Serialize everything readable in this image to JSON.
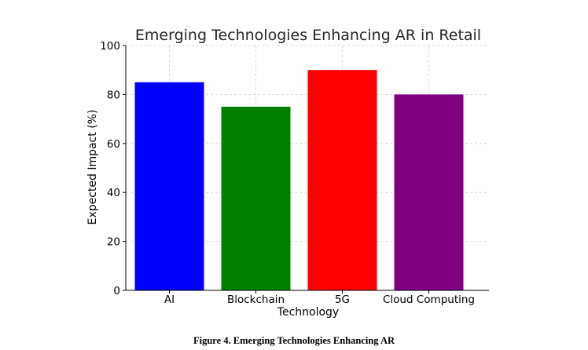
{
  "chart_data": {
    "type": "bar",
    "title": "Emerging Technologies Enhancing AR in Retail",
    "xlabel": "Technology",
    "ylabel": "Expected Impact (%)",
    "categories": [
      "AI",
      "Blockchain",
      "5G",
      "Cloud Computing"
    ],
    "values": [
      85,
      75,
      90,
      80
    ],
    "colors": [
      "#0000ff",
      "#008000",
      "#ff0000",
      "#800080"
    ],
    "ylim": [
      0,
      100
    ],
    "yticks": [
      0,
      20,
      40,
      60,
      80,
      100
    ],
    "grid": true,
    "legend": "none"
  },
  "caption": "Figure 4. Emerging Technologies Enhancing AR"
}
